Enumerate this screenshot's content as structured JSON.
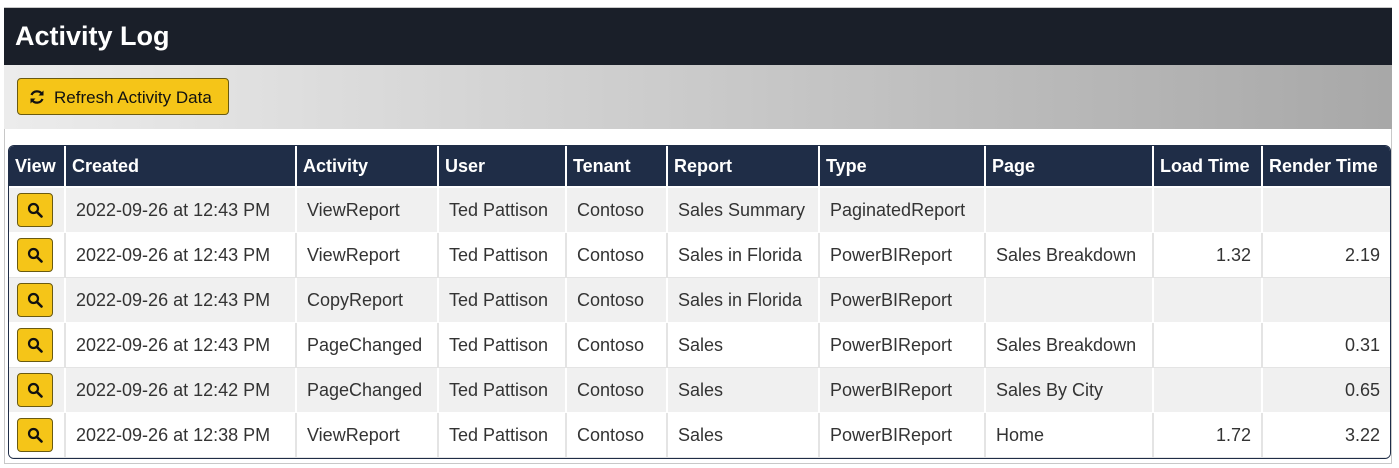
{
  "header": {
    "title": "Activity Log"
  },
  "toolbar": {
    "button": "Refresh Activity Data"
  },
  "table": {
    "columns": [
      "View",
      "Created",
      "Activity",
      "User",
      "Tenant",
      "Report",
      "Type",
      "Page",
      "Load Time",
      "Render Time"
    ],
    "rows": [
      [
        "2022-09-26 at 12:43 PM",
        "ViewReport",
        "Ted Pattison",
        "Contoso",
        "Sales Summary",
        "PaginatedReport",
        null,
        null,
        null
      ],
      [
        "2022-09-26 at 12:43 PM",
        "ViewReport",
        "Ted Pattison",
        "Contoso",
        "Sales in Florida",
        "PowerBIReport",
        "Sales Breakdown",
        1.32,
        2.19
      ],
      [
        "2022-09-26 at 12:43 PM",
        "CopyReport",
        "Ted Pattison",
        "Contoso",
        "Sales in Florida",
        "PowerBIReport",
        null,
        null,
        null
      ],
      [
        "2022-09-26 at 12:43 PM",
        "PageChanged",
        "Ted Pattison",
        "Contoso",
        "Sales",
        "PowerBIReport",
        "Sales Breakdown",
        null,
        0.31
      ],
      [
        "2022-09-26 at 12:42 PM",
        "PageChanged",
        "Ted Pattison",
        "Contoso",
        "Sales",
        "PowerBIReport",
        "Sales By City",
        null,
        0.65
      ],
      [
        "2022-09-26 at 12:38 PM",
        "ViewReport",
        "Ted Pattison",
        "Contoso",
        "Sales",
        "PowerBIReport",
        "Home",
        1.72,
        3.22
      ]
    ]
  }
}
